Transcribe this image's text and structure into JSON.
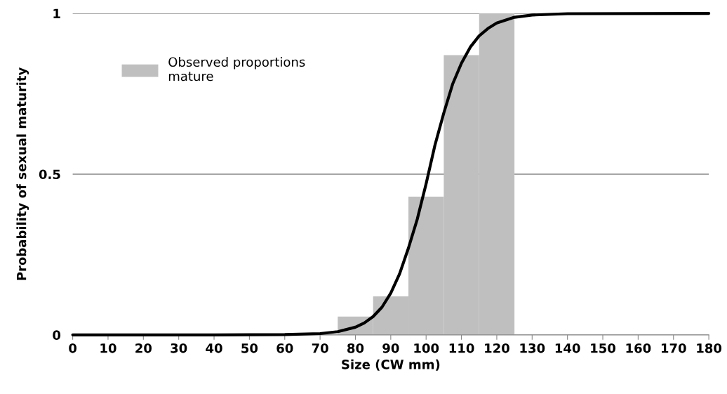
{
  "chart_data": {
    "type": "histogram",
    "xlabel": "Size (CW mm)",
    "ylabel": "Probability of sexual maturity",
    "bins": [
      75,
      85,
      95,
      105,
      115,
      125
    ],
    "series": [
      {
        "name": "Observed proportions\nmature",
        "color": "#bfbfbf",
        "values": [
          0.057,
          0.12,
          0.43,
          0.87,
          1.0
        ]
      },
      {
        "type": "line",
        "color": "#000000",
        "x": [
          0,
          40,
          60,
          70,
          75,
          80,
          82.5,
          85,
          87.5,
          90,
          92.5,
          95,
          97.5,
          100,
          102.5,
          105,
          107.5,
          110,
          112.5,
          115,
          117.5,
          120,
          125,
          130,
          140,
          180
        ],
        "values": [
          0,
          0,
          0.001,
          0.004,
          0.01,
          0.024,
          0.037,
          0.057,
          0.086,
          0.13,
          0.19,
          0.27,
          0.36,
          0.47,
          0.59,
          0.69,
          0.78,
          0.845,
          0.895,
          0.93,
          0.953,
          0.97,
          0.988,
          0.995,
          0.999,
          1.0
        ]
      }
    ],
    "xlim": [
      0,
      180
    ],
    "xticks": [
      0,
      10,
      20,
      30,
      40,
      50,
      60,
      70,
      80,
      90,
      100,
      110,
      120,
      130,
      140,
      150,
      160,
      170,
      180
    ],
    "ylim": [
      0,
      1
    ],
    "yticks": [
      0,
      0.5,
      1
    ],
    "grid": "y",
    "legend": "upper left",
    "marker": "none",
    "line_style": "solid"
  }
}
